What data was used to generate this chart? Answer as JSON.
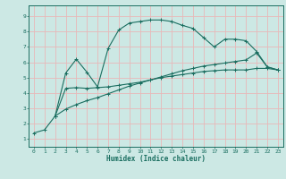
{
  "xlabel": "Humidex (Indice chaleur)",
  "ylabel": "",
  "bg_color": "#cce8e4",
  "grid_color": "#e8b8b8",
  "line_color": "#1a6e60",
  "xlim": [
    -0.5,
    23.5
  ],
  "ylim": [
    0.5,
    9.7
  ],
  "xticks": [
    0,
    1,
    2,
    3,
    4,
    5,
    6,
    7,
    8,
    9,
    10,
    11,
    12,
    13,
    14,
    15,
    16,
    17,
    18,
    19,
    20,
    21,
    22,
    23
  ],
  "yticks": [
    1,
    2,
    3,
    4,
    5,
    6,
    7,
    8,
    9
  ],
  "curve1_x": [
    0,
    1,
    2,
    3,
    4,
    5,
    6,
    7,
    8,
    9,
    10,
    11,
    12,
    13,
    14,
    15,
    16,
    17,
    18,
    19,
    20,
    21,
    22,
    23
  ],
  "curve1_y": [
    1.4,
    1.6,
    2.5,
    5.3,
    6.2,
    5.35,
    4.4,
    6.9,
    8.1,
    8.55,
    8.65,
    8.75,
    8.75,
    8.65,
    8.4,
    8.2,
    7.6,
    7.0,
    7.5,
    7.5,
    7.4,
    6.7,
    5.7,
    5.5
  ],
  "curve2_x": [
    2,
    3,
    4,
    5,
    6,
    7,
    8,
    9,
    10,
    11,
    12,
    13,
    14,
    15,
    16,
    17,
    18,
    19,
    20,
    21,
    22,
    23
  ],
  "curve2_y": [
    2.5,
    4.3,
    4.35,
    4.3,
    4.35,
    4.4,
    4.5,
    4.6,
    4.7,
    4.85,
    5.0,
    5.1,
    5.2,
    5.3,
    5.4,
    5.45,
    5.5,
    5.5,
    5.5,
    5.6,
    5.6,
    5.5
  ],
  "curve3_x": [
    2,
    3,
    4,
    5,
    6,
    7,
    8,
    9,
    10,
    11,
    12,
    13,
    14,
    15,
    16,
    17,
    18,
    19,
    20,
    21,
    22,
    23
  ],
  "curve3_y": [
    2.5,
    2.95,
    3.25,
    3.5,
    3.7,
    3.95,
    4.2,
    4.45,
    4.65,
    4.85,
    5.05,
    5.25,
    5.45,
    5.6,
    5.75,
    5.85,
    5.95,
    6.05,
    6.15,
    6.6,
    5.7,
    5.5
  ]
}
